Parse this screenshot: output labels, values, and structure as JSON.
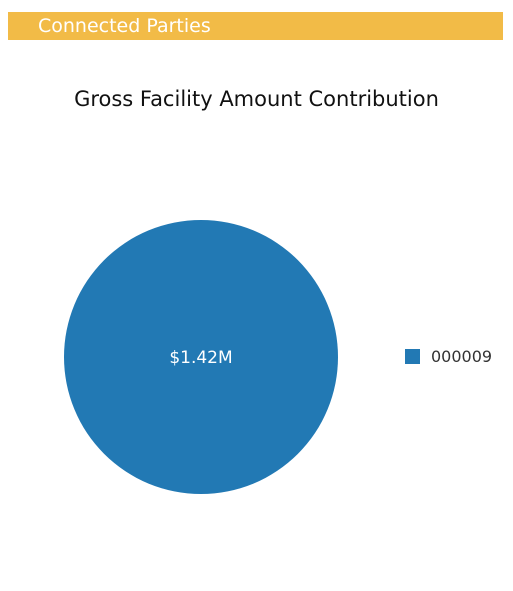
{
  "header": {
    "title": "Connected Parties",
    "color": "#f2bb47"
  },
  "chart_data": {
    "type": "pie",
    "title": "Gross Facility Amount Contribution",
    "slices": [
      {
        "name": "000009",
        "value": 1.42,
        "label": "$1.42M",
        "color": "#2279b4"
      }
    ],
    "legend": "right"
  }
}
